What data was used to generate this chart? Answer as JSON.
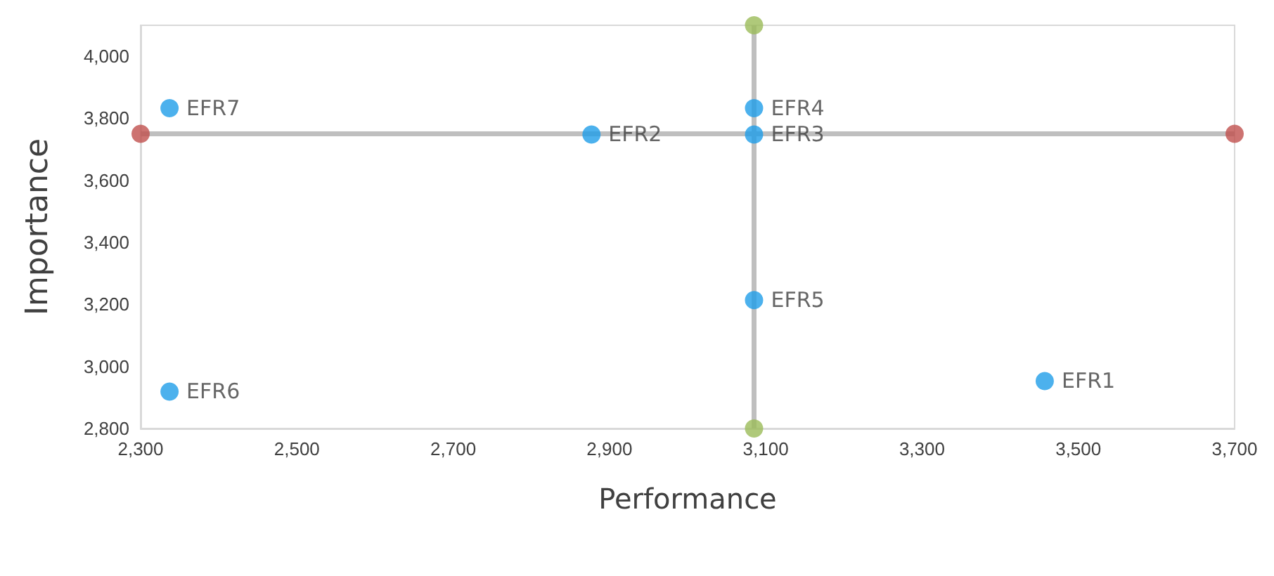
{
  "chart_data": {
    "type": "scatter",
    "xlabel": "Performance",
    "ylabel": "Importance",
    "x": [
      3457,
      2877,
      3085,
      3085,
      3085,
      2337,
      2337
    ],
    "series": [
      {
        "color": "#1f9ee8",
        "values": [
          2953,
          3748,
          3748,
          3833,
          3214,
          2919,
          3833
        ]
      },
      {
        "color": "#c0504d",
        "x": [
          2300,
          3700
        ],
        "values": [
          3750,
          3750
        ]
      },
      {
        "color": "#9bbb59",
        "x": [
          3085,
          3085
        ],
        "values": [
          2800,
          4100
        ]
      }
    ],
    "annotations": [
      {
        "text": "EFR1",
        "x": 3457,
        "y": 2953
      },
      {
        "text": "EFR2",
        "x": 2877,
        "y": 3748
      },
      {
        "text": "EFR3",
        "x": 3085,
        "y": 3748
      },
      {
        "text": "EFR4",
        "x": 3085,
        "y": 3833
      },
      {
        "text": "EFR5",
        "x": 3085,
        "y": 3214
      },
      {
        "text": "EFR6",
        "x": 2337,
        "y": 2919
      },
      {
        "text": "EFR7",
        "x": 2337,
        "y": 3833
      }
    ],
    "ref_lines": [
      {
        "axis": "y",
        "value": 3750,
        "color": "#bfbfbf"
      },
      {
        "axis": "x",
        "value": 3085,
        "color": "#bfbfbf"
      }
    ],
    "xlim": [
      2300,
      3700
    ],
    "xticks": [
      {
        "value": 2300,
        "label": "2,300"
      },
      {
        "value": 2500,
        "label": "2,500"
      },
      {
        "value": 2700,
        "label": "2,700"
      },
      {
        "value": 2900,
        "label": "2,900"
      },
      {
        "value": 3100,
        "label": "3,100"
      },
      {
        "value": 3300,
        "label": "3,300"
      },
      {
        "value": 3500,
        "label": "3,500"
      },
      {
        "value": 3700,
        "label": "3,700"
      }
    ],
    "ylim": [
      2800,
      4100
    ],
    "yticks": [
      {
        "value": 2800,
        "label": "2,800"
      },
      {
        "value": 3000,
        "label": "3,000"
      },
      {
        "value": 3200,
        "label": "3,200"
      },
      {
        "value": 3400,
        "label": "3,400"
      },
      {
        "value": 3600,
        "label": "3,600"
      },
      {
        "value": 3800,
        "label": "3,800"
      },
      {
        "value": 4000,
        "label": "4,000"
      }
    ],
    "marker": "circle",
    "grid": false
  }
}
